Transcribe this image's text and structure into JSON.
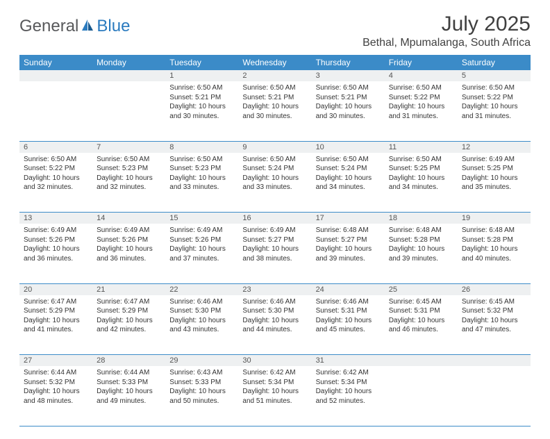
{
  "brand": {
    "name1": "General",
    "name2": "Blue",
    "text_color": "#58595b",
    "accent_color": "#2b7bbf"
  },
  "title": "July 2025",
  "location": "Bethal, Mpumalanga, South Africa",
  "colors": {
    "header_bg": "#3b8bc8",
    "header_text": "#ffffff",
    "daynum_bg": "#eef0f1",
    "border": "#3b8bc8",
    "body_text": "#333333"
  },
  "weekdays": [
    "Sunday",
    "Monday",
    "Tuesday",
    "Wednesday",
    "Thursday",
    "Friday",
    "Saturday"
  ],
  "weeks": [
    [
      null,
      null,
      {
        "n": "1",
        "sr": "Sunrise: 6:50 AM",
        "ss": "Sunset: 5:21 PM",
        "d1": "Daylight: 10 hours",
        "d2": "and 30 minutes."
      },
      {
        "n": "2",
        "sr": "Sunrise: 6:50 AM",
        "ss": "Sunset: 5:21 PM",
        "d1": "Daylight: 10 hours",
        "d2": "and 30 minutes."
      },
      {
        "n": "3",
        "sr": "Sunrise: 6:50 AM",
        "ss": "Sunset: 5:21 PM",
        "d1": "Daylight: 10 hours",
        "d2": "and 30 minutes."
      },
      {
        "n": "4",
        "sr": "Sunrise: 6:50 AM",
        "ss": "Sunset: 5:22 PM",
        "d1": "Daylight: 10 hours",
        "d2": "and 31 minutes."
      },
      {
        "n": "5",
        "sr": "Sunrise: 6:50 AM",
        "ss": "Sunset: 5:22 PM",
        "d1": "Daylight: 10 hours",
        "d2": "and 31 minutes."
      }
    ],
    [
      {
        "n": "6",
        "sr": "Sunrise: 6:50 AM",
        "ss": "Sunset: 5:22 PM",
        "d1": "Daylight: 10 hours",
        "d2": "and 32 minutes."
      },
      {
        "n": "7",
        "sr": "Sunrise: 6:50 AM",
        "ss": "Sunset: 5:23 PM",
        "d1": "Daylight: 10 hours",
        "d2": "and 32 minutes."
      },
      {
        "n": "8",
        "sr": "Sunrise: 6:50 AM",
        "ss": "Sunset: 5:23 PM",
        "d1": "Daylight: 10 hours",
        "d2": "and 33 minutes."
      },
      {
        "n": "9",
        "sr": "Sunrise: 6:50 AM",
        "ss": "Sunset: 5:24 PM",
        "d1": "Daylight: 10 hours",
        "d2": "and 33 minutes."
      },
      {
        "n": "10",
        "sr": "Sunrise: 6:50 AM",
        "ss": "Sunset: 5:24 PM",
        "d1": "Daylight: 10 hours",
        "d2": "and 34 minutes."
      },
      {
        "n": "11",
        "sr": "Sunrise: 6:50 AM",
        "ss": "Sunset: 5:25 PM",
        "d1": "Daylight: 10 hours",
        "d2": "and 34 minutes."
      },
      {
        "n": "12",
        "sr": "Sunrise: 6:49 AM",
        "ss": "Sunset: 5:25 PM",
        "d1": "Daylight: 10 hours",
        "d2": "and 35 minutes."
      }
    ],
    [
      {
        "n": "13",
        "sr": "Sunrise: 6:49 AM",
        "ss": "Sunset: 5:26 PM",
        "d1": "Daylight: 10 hours",
        "d2": "and 36 minutes."
      },
      {
        "n": "14",
        "sr": "Sunrise: 6:49 AM",
        "ss": "Sunset: 5:26 PM",
        "d1": "Daylight: 10 hours",
        "d2": "and 36 minutes."
      },
      {
        "n": "15",
        "sr": "Sunrise: 6:49 AM",
        "ss": "Sunset: 5:26 PM",
        "d1": "Daylight: 10 hours",
        "d2": "and 37 minutes."
      },
      {
        "n": "16",
        "sr": "Sunrise: 6:49 AM",
        "ss": "Sunset: 5:27 PM",
        "d1": "Daylight: 10 hours",
        "d2": "and 38 minutes."
      },
      {
        "n": "17",
        "sr": "Sunrise: 6:48 AM",
        "ss": "Sunset: 5:27 PM",
        "d1": "Daylight: 10 hours",
        "d2": "and 39 minutes."
      },
      {
        "n": "18",
        "sr": "Sunrise: 6:48 AM",
        "ss": "Sunset: 5:28 PM",
        "d1": "Daylight: 10 hours",
        "d2": "and 39 minutes."
      },
      {
        "n": "19",
        "sr": "Sunrise: 6:48 AM",
        "ss": "Sunset: 5:28 PM",
        "d1": "Daylight: 10 hours",
        "d2": "and 40 minutes."
      }
    ],
    [
      {
        "n": "20",
        "sr": "Sunrise: 6:47 AM",
        "ss": "Sunset: 5:29 PM",
        "d1": "Daylight: 10 hours",
        "d2": "and 41 minutes."
      },
      {
        "n": "21",
        "sr": "Sunrise: 6:47 AM",
        "ss": "Sunset: 5:29 PM",
        "d1": "Daylight: 10 hours",
        "d2": "and 42 minutes."
      },
      {
        "n": "22",
        "sr": "Sunrise: 6:46 AM",
        "ss": "Sunset: 5:30 PM",
        "d1": "Daylight: 10 hours",
        "d2": "and 43 minutes."
      },
      {
        "n": "23",
        "sr": "Sunrise: 6:46 AM",
        "ss": "Sunset: 5:30 PM",
        "d1": "Daylight: 10 hours",
        "d2": "and 44 minutes."
      },
      {
        "n": "24",
        "sr": "Sunrise: 6:46 AM",
        "ss": "Sunset: 5:31 PM",
        "d1": "Daylight: 10 hours",
        "d2": "and 45 minutes."
      },
      {
        "n": "25",
        "sr": "Sunrise: 6:45 AM",
        "ss": "Sunset: 5:31 PM",
        "d1": "Daylight: 10 hours",
        "d2": "and 46 minutes."
      },
      {
        "n": "26",
        "sr": "Sunrise: 6:45 AM",
        "ss": "Sunset: 5:32 PM",
        "d1": "Daylight: 10 hours",
        "d2": "and 47 minutes."
      }
    ],
    [
      {
        "n": "27",
        "sr": "Sunrise: 6:44 AM",
        "ss": "Sunset: 5:32 PM",
        "d1": "Daylight: 10 hours",
        "d2": "and 48 minutes."
      },
      {
        "n": "28",
        "sr": "Sunrise: 6:44 AM",
        "ss": "Sunset: 5:33 PM",
        "d1": "Daylight: 10 hours",
        "d2": "and 49 minutes."
      },
      {
        "n": "29",
        "sr": "Sunrise: 6:43 AM",
        "ss": "Sunset: 5:33 PM",
        "d1": "Daylight: 10 hours",
        "d2": "and 50 minutes."
      },
      {
        "n": "30",
        "sr": "Sunrise: 6:42 AM",
        "ss": "Sunset: 5:34 PM",
        "d1": "Daylight: 10 hours",
        "d2": "and 51 minutes."
      },
      {
        "n": "31",
        "sr": "Sunrise: 6:42 AM",
        "ss": "Sunset: 5:34 PM",
        "d1": "Daylight: 10 hours",
        "d2": "and 52 minutes."
      },
      null,
      null
    ]
  ]
}
